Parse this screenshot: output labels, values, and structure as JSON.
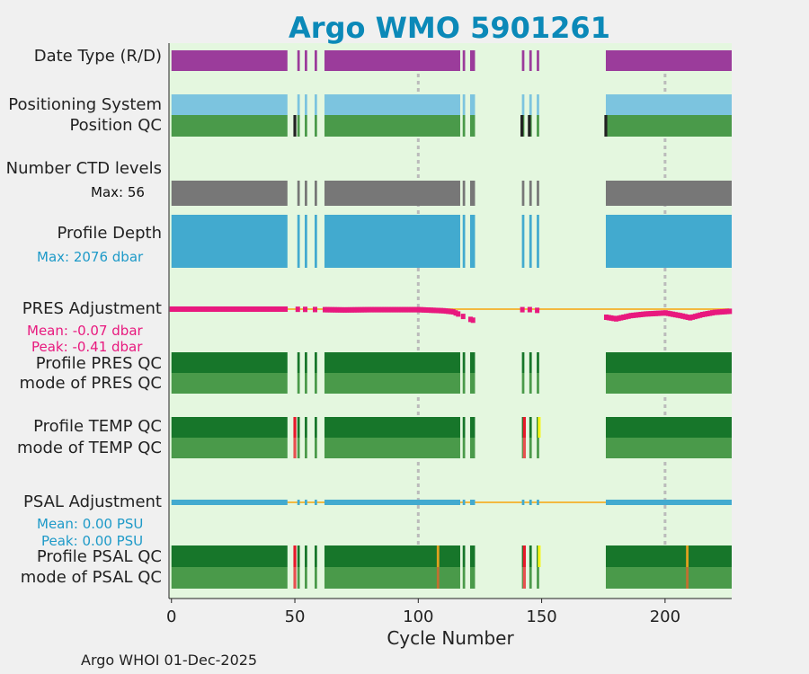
{
  "chart_data": {
    "type": "table",
    "title": "Argo WMO 5901261",
    "xlabel": "Cycle Number",
    "xlim": [
      -1,
      227
    ],
    "xticks": [
      0,
      50,
      100,
      150,
      200
    ],
    "footer": "Argo WHOI 01-Dec-2025",
    "cycle_blocks": [
      [
        0,
        47
      ],
      [
        51,
        52
      ],
      [
        54,
        55
      ],
      [
        58,
        59
      ],
      [
        62,
        117
      ],
      [
        118,
        119
      ],
      [
        121,
        123
      ],
      [
        142,
        143
      ],
      [
        145,
        146
      ],
      [
        148,
        149
      ],
      [
        176,
        227
      ]
    ],
    "rows": {
      "data_type": {
        "label": "Date Type (R/D)",
        "color": "#9b3c9b"
      },
      "positioning_system": {
        "label": "Positioning System",
        "color": "#7cc4df"
      },
      "position_qc": {
        "label": "Position QC",
        "color": "#4a9a4a",
        "bad_color": "#222222",
        "bad_cycles": [
          50,
          142,
          145,
          176
        ]
      },
      "number_ctd_levels": {
        "label": "Number CTD levels",
        "max_text": "Max: 56",
        "color": "#777777"
      },
      "profile_depth": {
        "label": "Profile Depth",
        "max_text": "Max: 2076 dbar",
        "color": "#42aacf"
      },
      "pres_adjustment": {
        "label": "PRES Adjustment",
        "mean_text": "Mean: -0.07 dbar",
        "peak_text": "Peak: -0.41 dbar",
        "color": "#e8197e",
        "zero_color": "#f2b940"
      },
      "profile_pres_qc": {
        "label": "Profile PRES QC",
        "color": "#17762a"
      },
      "mode_pres_qc": {
        "label": "mode of PRES QC",
        "color": "#4a9a4a"
      },
      "profile_temp_qc": {
        "label": "Profile TEMP QC",
        "color": "#17762a",
        "red_cycles": [
          50,
          143
        ],
        "yellow_cycles": [
          149
        ]
      },
      "mode_temp_qc": {
        "label": "mode of TEMP QC",
        "color": "#4a9a4a",
        "red_cycles": [
          50,
          143
        ]
      },
      "psal_adjustment": {
        "label": "PSAL Adjustment",
        "mean_text": "Mean: 0.00 PSU",
        "peak_text": "Peak: 0.00 PSU",
        "color": "#42aacf",
        "zero_color": "#f2b940"
      },
      "profile_psal_qc": {
        "label": "Profile PSAL QC",
        "color": "#17762a",
        "red_cycles": [
          50,
          143
        ],
        "yellow_cycles": [
          149
        ],
        "orange_cycles": [
          108,
          209
        ]
      },
      "mode_psal_qc": {
        "label": "mode of PSAL QC",
        "color": "#4a9a4a",
        "red_cycles": [
          50,
          143
        ],
        "orange_cycles": [
          108,
          209
        ]
      }
    },
    "pres_adjustment_curve": [
      [
        0,
        0.0
      ],
      [
        20,
        0.0
      ],
      [
        40,
        0.0
      ],
      [
        47,
        0.0
      ],
      [
        62,
        -0.02
      ],
      [
        70,
        -0.03
      ],
      [
        80,
        -0.02
      ],
      [
        90,
        -0.02
      ],
      [
        100,
        -0.02
      ],
      [
        110,
        -0.06
      ],
      [
        114,
        -0.1
      ],
      [
        117,
        -0.22
      ],
      [
        119,
        -0.32
      ],
      [
        122,
        -0.41
      ],
      [
        143,
        0.0
      ],
      [
        176,
        -0.3
      ],
      [
        180,
        -0.36
      ],
      [
        186,
        -0.24
      ],
      [
        192,
        -0.18
      ],
      [
        200,
        -0.14
      ],
      [
        206,
        -0.24
      ],
      [
        210,
        -0.32
      ],
      [
        215,
        -0.2
      ],
      [
        220,
        -0.12
      ],
      [
        226,
        -0.08
      ]
    ]
  }
}
